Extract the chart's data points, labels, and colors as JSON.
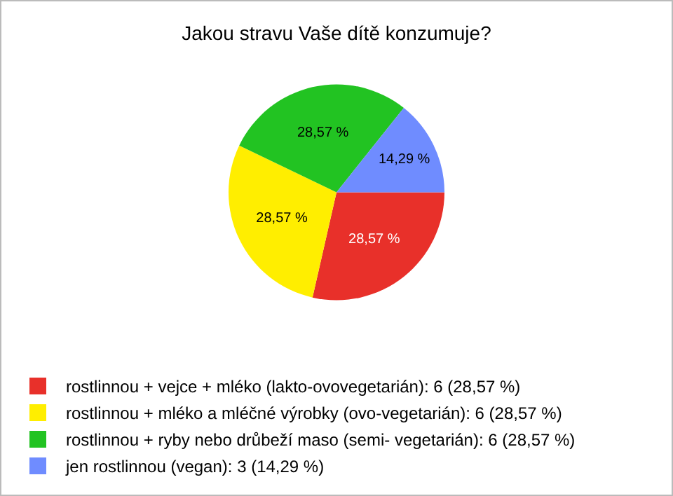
{
  "chart_data": {
    "type": "pie",
    "title": "Jakou stravu Vaše dítě konzumuje?",
    "categories": [
      "rostlinnou + vejce + mléko (lakto-ovovegetarián): 6 (28,57 %)",
      "rostlinnou + mléko a mléčné výrobky (ovo-vegetarián): 6 (28,57 %)",
      "rostlinnou + ryby nebo drůbeží maso (semi- vegetarián): 6 (28,57 %)",
      "jen rostlinnou (vegan): 3 (14,29 %)"
    ],
    "values": [
      28.57,
      28.57,
      28.57,
      14.29
    ],
    "value_labels": [
      "28,57 %",
      "28,57 %",
      "28,57 %",
      "14,29 %"
    ],
    "colors": [
      "#e8302a",
      "#ffee00",
      "#22c322",
      "#6f8cff"
    ],
    "legend": "bottom left"
  }
}
